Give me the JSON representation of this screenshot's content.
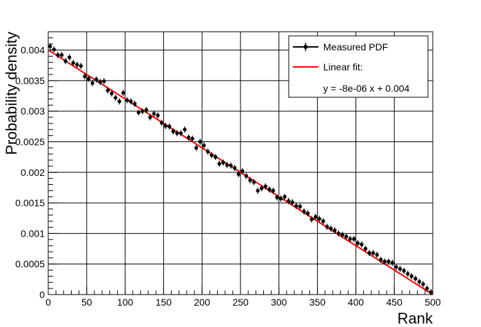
{
  "chart_data": {
    "type": "scatter",
    "title": "",
    "xlabel": "Rank",
    "ylabel": "Probability density",
    "xlim": [
      0,
      500
    ],
    "ylim": [
      0,
      0.0043
    ],
    "grid": true,
    "x_ticks": [
      "0",
      "50",
      "100",
      "150",
      "200",
      "250",
      "300",
      "350",
      "400",
      "450",
      "500"
    ],
    "y_ticks": [
      "0",
      "0.0005",
      "0.001",
      "0.0015",
      "0.002",
      "0.0025",
      "0.003",
      "0.0035",
      "0.004"
    ],
    "legend": {
      "placement": "top-right",
      "entries": [
        {
          "label": "Measured PDF",
          "marker": "square-errorbar",
          "color": "#000000"
        },
        {
          "label": "Linear fit:",
          "marker": "line",
          "color": "#ff0000"
        },
        {
          "label": "y = -8e-06 x + 0.004",
          "marker": "none",
          "color": "#000000"
        }
      ]
    },
    "series": [
      {
        "name": "Measured PDF",
        "color": "#000000",
        "x": [
          2.5,
          7.5,
          12.5,
          17.5,
          22.5,
          27.5,
          32.5,
          37.5,
          42.5,
          47.5,
          52.5,
          57.5,
          62.5,
          67.5,
          72.5,
          77.5,
          82.5,
          87.5,
          92.5,
          97.5,
          102.5,
          107.5,
          112.5,
          117.5,
          122.5,
          127.5,
          132.5,
          137.5,
          142.5,
          147.5,
          152.5,
          157.5,
          162.5,
          167.5,
          172.5,
          177.5,
          182.5,
          187.5,
          192.5,
          197.5,
          202.5,
          207.5,
          212.5,
          217.5,
          222.5,
          227.5,
          232.5,
          237.5,
          242.5,
          247.5,
          252.5,
          257.5,
          262.5,
          267.5,
          272.5,
          277.5,
          282.5,
          287.5,
          292.5,
          297.5,
          302.5,
          307.5,
          312.5,
          317.5,
          322.5,
          327.5,
          332.5,
          337.5,
          342.5,
          347.5,
          352.5,
          357.5,
          362.5,
          367.5,
          372.5,
          377.5,
          382.5,
          387.5,
          392.5,
          397.5,
          402.5,
          407.5,
          412.5,
          417.5,
          422.5,
          427.5,
          432.5,
          437.5,
          442.5,
          447.5,
          452.5,
          457.5,
          462.5,
          467.5,
          472.5,
          477.5,
          482.5,
          487.5,
          492.5,
          497.5
        ],
        "y": [
          0.00406,
          0.00401,
          0.00392,
          0.00392,
          0.00382,
          0.00388,
          0.00379,
          0.00376,
          0.00374,
          0.00357,
          0.00353,
          0.00346,
          0.00352,
          0.00348,
          0.00349,
          0.00334,
          0.00329,
          0.00322,
          0.00316,
          0.0033,
          0.00318,
          0.00316,
          0.00312,
          0.00298,
          0.003,
          0.00302,
          0.0029,
          0.00296,
          0.00293,
          0.00281,
          0.00276,
          0.00275,
          0.00267,
          0.00264,
          0.00264,
          0.0027,
          0.00257,
          0.00255,
          0.0024,
          0.0025,
          0.00244,
          0.00234,
          0.00228,
          0.00225,
          0.00214,
          0.00216,
          0.00212,
          0.00211,
          0.00207,
          0.00197,
          0.00202,
          0.00194,
          0.00187,
          0.00184,
          0.0017,
          0.00174,
          0.00177,
          0.00172,
          0.0017,
          0.00159,
          0.00157,
          0.0016,
          0.00153,
          0.00151,
          0.00145,
          0.00144,
          0.00136,
          0.00133,
          0.00123,
          0.00127,
          0.00124,
          0.0012,
          0.00111,
          0.00108,
          0.00105,
          0.001,
          0.00098,
          0.00095,
          0.00091,
          0.00091,
          0.00084,
          0.00082,
          0.00075,
          0.00068,
          0.00068,
          0.00065,
          0.00057,
          0.00054,
          0.00054,
          0.00052,
          0.00045,
          0.00042,
          0.00039,
          0.00034,
          0.0003,
          0.00026,
          0.00021,
          0.00017,
          0.0001,
          4e-05
        ],
        "y_error": 5e-05
      },
      {
        "name": "Linear fit:",
        "type": "line",
        "color": "#ff0000",
        "x": [
          0,
          500
        ],
        "y": [
          0.004,
          0.0
        ]
      }
    ]
  }
}
